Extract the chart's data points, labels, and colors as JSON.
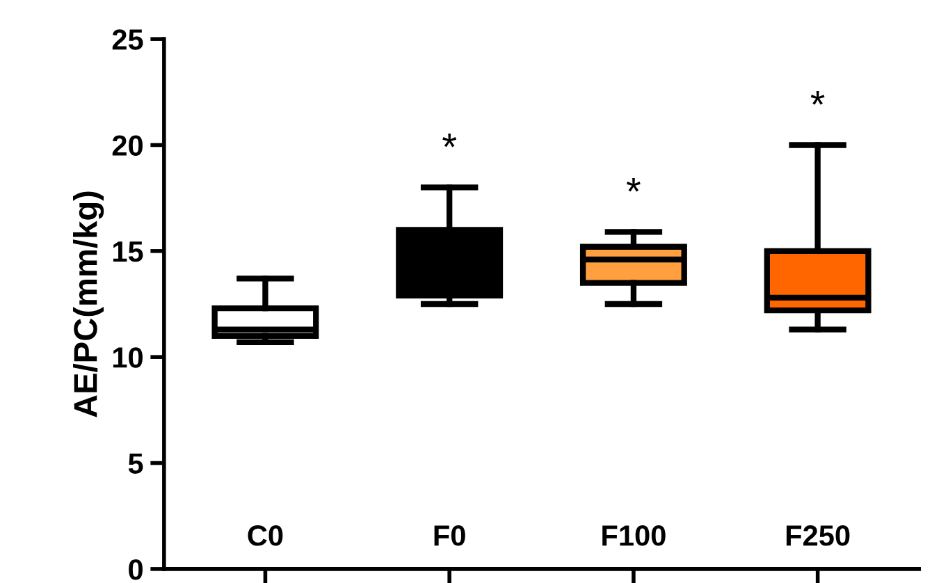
{
  "chart_data": {
    "type": "box",
    "ylabel": "AE/PC(mm/kg)",
    "categories": [
      "C0",
      "F0",
      "F100",
      "F250"
    ],
    "colors": [
      "#ffffff",
      "#000000",
      "#ff9f40",
      "#ff6600"
    ],
    "boxes": [
      {
        "low": 10.7,
        "q1": 11.0,
        "median": 11.3,
        "q3": 12.3,
        "high": 13.7
      },
      {
        "low": 12.5,
        "q1": 12.9,
        "median": 13.1,
        "q3": 16.0,
        "high": 18.0
      },
      {
        "low": 12.5,
        "q1": 13.5,
        "median": 14.6,
        "q3": 15.2,
        "high": 15.9
      },
      {
        "low": 11.3,
        "q1": 12.2,
        "median": 12.8,
        "q3": 15.0,
        "high": 20.0
      }
    ],
    "ylim": [
      0,
      25
    ],
    "yticks": [
      0,
      5,
      10,
      15,
      20,
      25
    ],
    "grid": false,
    "annotations": [
      "*",
      "*",
      "*"
    ]
  }
}
